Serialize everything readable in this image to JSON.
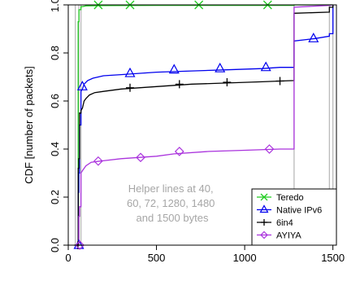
{
  "chart_data": {
    "type": "line",
    "ylabel": "CDF [number of packets]",
    "xlim": [
      0,
      1520
    ],
    "ylim": [
      0,
      1
    ],
    "xticks": [
      0,
      500,
      1000,
      1500
    ],
    "yticks": [
      0.0,
      0.2,
      0.4,
      0.6,
      0.8,
      1.0
    ],
    "ytick_labels": [
      "0.0",
      "0.2",
      "0.4",
      "0.6",
      "0.8",
      "1.0"
    ],
    "helper_lines": [
      40,
      60,
      72,
      1280,
      1480,
      1500
    ],
    "annotation": [
      "Helper lines at 40,",
      "60, 72, 1280, 1480",
      "and 1500 bytes"
    ],
    "legend_position": "bottom-right",
    "series": [
      {
        "name": "Teredo",
        "color": "#22cc22",
        "marker": "x",
        "points": [
          [
            40,
            0
          ],
          [
            56,
            0
          ],
          [
            56,
            0.93
          ],
          [
            61,
            0.93
          ],
          [
            61,
            0.98
          ],
          [
            72,
            0.98
          ],
          [
            72,
            0.993
          ],
          [
            80,
            0.993
          ],
          [
            100,
            0.996
          ],
          [
            200,
            0.997
          ],
          [
            500,
            0.998
          ],
          [
            900,
            0.998
          ],
          [
            1280,
            0.998
          ],
          [
            1280,
            1.0
          ],
          [
            1500,
            1.0
          ]
        ],
        "markers": [
          [
            170,
            1.0
          ],
          [
            350,
            1.0
          ],
          [
            740,
            1.0
          ],
          [
            1130,
            1.0
          ]
        ]
      },
      {
        "name": "Native IPv6",
        "color": "#0000ee",
        "marker": "triangle",
        "points": [
          [
            40,
            0
          ],
          [
            56,
            0
          ],
          [
            56,
            0.22
          ],
          [
            60,
            0.22
          ],
          [
            60,
            0.3
          ],
          [
            64,
            0.3
          ],
          [
            64,
            0.5
          ],
          [
            72,
            0.5
          ],
          [
            72,
            0.64
          ],
          [
            80,
            0.65
          ],
          [
            90,
            0.67
          ],
          [
            110,
            0.685
          ],
          [
            140,
            0.695
          ],
          [
            200,
            0.705
          ],
          [
            300,
            0.71
          ],
          [
            400,
            0.715
          ],
          [
            500,
            0.72
          ],
          [
            700,
            0.725
          ],
          [
            900,
            0.73
          ],
          [
            1100,
            0.735
          ],
          [
            1200,
            0.74
          ],
          [
            1280,
            0.74
          ],
          [
            1280,
            0.85
          ],
          [
            1400,
            0.86
          ],
          [
            1480,
            0.87
          ],
          [
            1480,
            0.88
          ],
          [
            1500,
            0.88
          ],
          [
            1500,
            1.0
          ]
        ],
        "markers": [
          [
            60,
            0.0
          ],
          [
            80,
            0.66
          ],
          [
            350,
            0.715
          ],
          [
            600,
            0.73
          ],
          [
            860,
            0.735
          ],
          [
            1120,
            0.74
          ],
          [
            1390,
            0.86
          ]
        ]
      },
      {
        "name": "6in4",
        "color": "#000000",
        "marker": "plus",
        "points": [
          [
            40,
            0
          ],
          [
            56,
            0
          ],
          [
            56,
            0.32
          ],
          [
            60,
            0.32
          ],
          [
            60,
            0.36
          ],
          [
            64,
            0.36
          ],
          [
            64,
            0.55
          ],
          [
            72,
            0.55
          ],
          [
            72,
            0.56
          ],
          [
            80,
            0.57
          ],
          [
            90,
            0.6
          ],
          [
            100,
            0.61
          ],
          [
            120,
            0.625
          ],
          [
            150,
            0.635
          ],
          [
            200,
            0.64
          ],
          [
            300,
            0.65
          ],
          [
            400,
            0.655
          ],
          [
            500,
            0.66
          ],
          [
            700,
            0.67
          ],
          [
            900,
            0.675
          ],
          [
            1100,
            0.68
          ],
          [
            1200,
            0.683
          ],
          [
            1280,
            0.685
          ],
          [
            1280,
            0.965
          ],
          [
            1480,
            0.97
          ],
          [
            1480,
            0.99
          ],
          [
            1500,
            0.99
          ],
          [
            1500,
            1.0
          ]
        ],
        "markers": [
          [
            55,
            0.0
          ],
          [
            350,
            0.655
          ],
          [
            630,
            0.67
          ],
          [
            900,
            0.678
          ],
          [
            1200,
            0.683
          ]
        ]
      },
      {
        "name": "AYIYA",
        "color": "#aa33dd",
        "marker": "diamond",
        "points": [
          [
            40,
            0
          ],
          [
            60,
            0
          ],
          [
            60,
            0.12
          ],
          [
            64,
            0.12
          ],
          [
            64,
            0.16
          ],
          [
            72,
            0.16
          ],
          [
            72,
            0.3
          ],
          [
            80,
            0.31
          ],
          [
            100,
            0.33
          ],
          [
            130,
            0.345
          ],
          [
            180,
            0.35
          ],
          [
            300,
            0.36
          ],
          [
            400,
            0.365
          ],
          [
            500,
            0.37
          ],
          [
            600,
            0.38
          ],
          [
            800,
            0.39
          ],
          [
            1000,
            0.395
          ],
          [
            1200,
            0.4
          ],
          [
            1280,
            0.4
          ],
          [
            1280,
            0.99
          ],
          [
            1480,
            0.998
          ],
          [
            1500,
            1.0
          ]
        ],
        "markers": [
          [
            65,
            0.0
          ],
          [
            170,
            0.35
          ],
          [
            410,
            0.365
          ],
          [
            630,
            0.39
          ],
          [
            1140,
            0.4
          ]
        ]
      }
    ]
  }
}
